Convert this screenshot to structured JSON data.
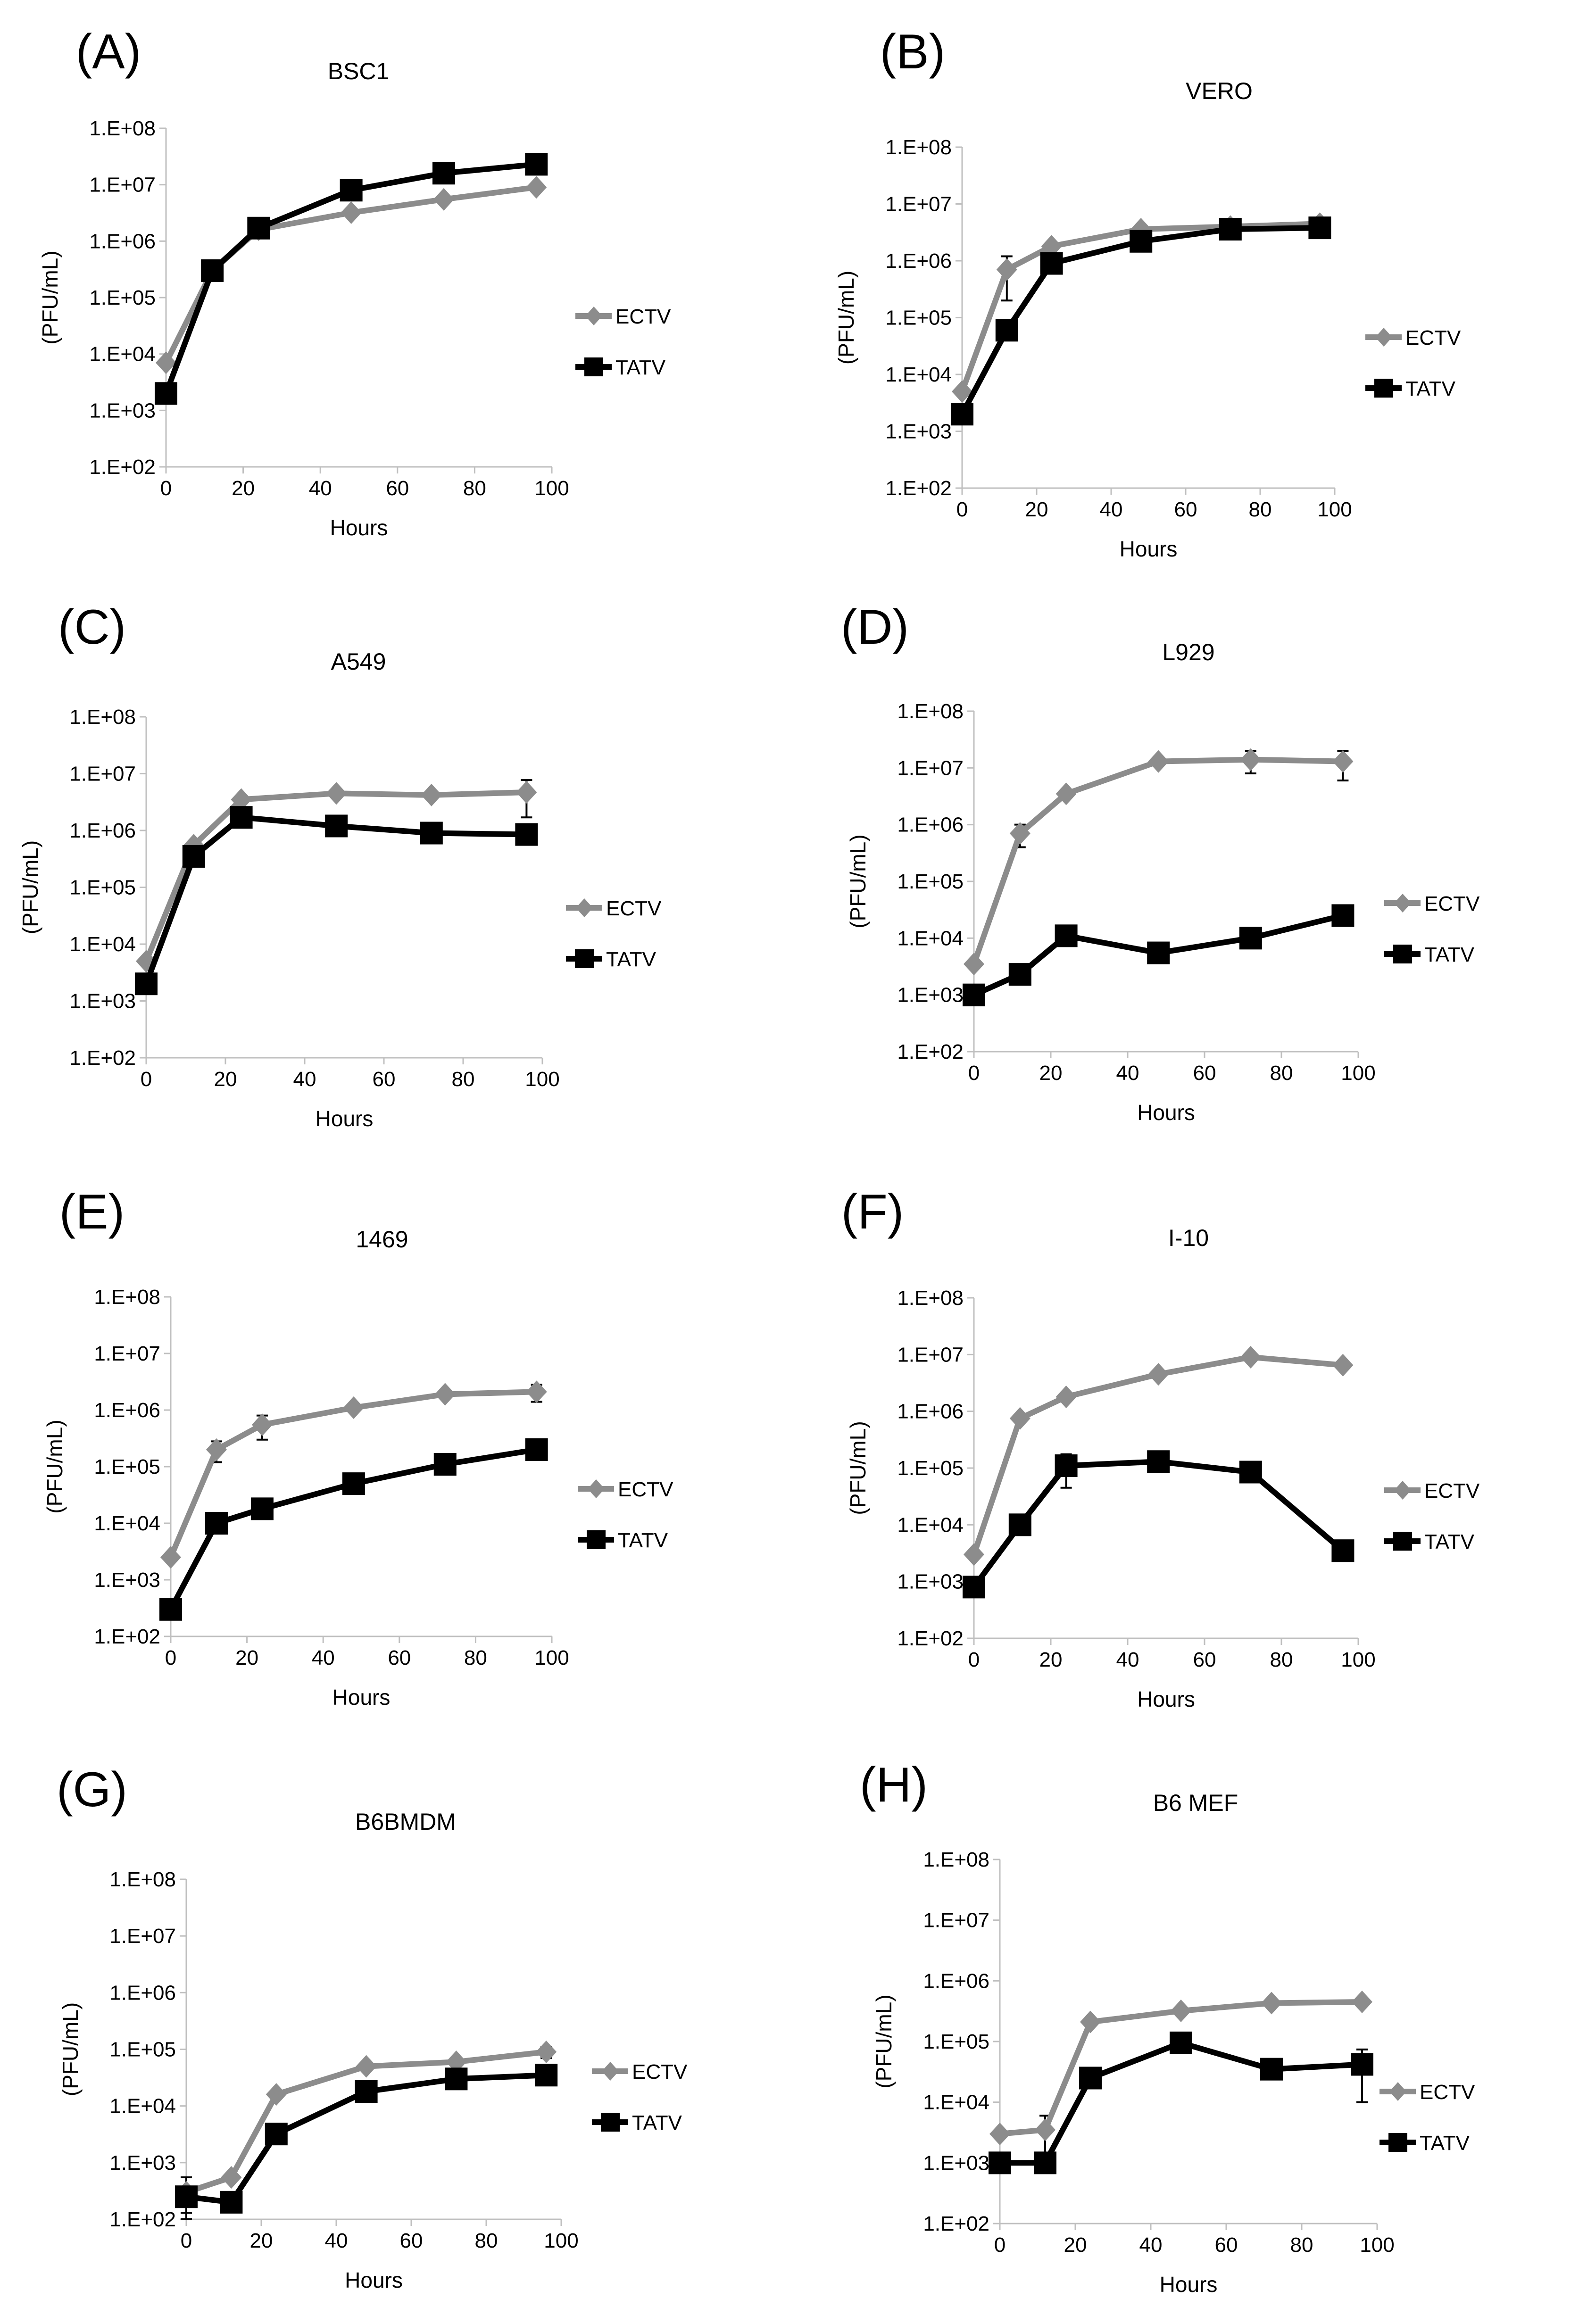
{
  "colors": {
    "ECTV": "#8c8c8c",
    "TATV": "#000000",
    "axis": "#bfbfbf"
  },
  "chart_data": [
    {
      "panel": "(A)",
      "type": "line",
      "title": "BSC1",
      "xlabel": "Hours",
      "ylabel": "(PFU/mL)",
      "xlim": [
        0,
        100
      ],
      "xticks": [
        0,
        20,
        40,
        60,
        80,
        100
      ],
      "ylim": [
        100,
        100000000
      ],
      "yscale": "log",
      "yticks": [
        "1.E+02",
        "1.E+03",
        "1.E+04",
        "1.E+05",
        "1.E+06",
        "1.E+07",
        "1.E+08"
      ],
      "x": [
        0,
        12,
        24,
        48,
        72,
        96
      ],
      "series": [
        {
          "name": "ECTV",
          "marker": "diamond",
          "values": [
            7000,
            300000,
            1600000,
            3200000,
            5500000,
            9000000
          ],
          "err": [
            0,
            0,
            0,
            0,
            0,
            0
          ]
        },
        {
          "name": "TATV",
          "marker": "square",
          "values": [
            2000,
            300000,
            1700000,
            8000000,
            16000000,
            23000000
          ],
          "err": [
            0,
            0,
            0,
            0,
            0,
            0
          ]
        }
      ],
      "legend": "right"
    },
    {
      "panel": "(B)",
      "type": "line",
      "title": "VERO",
      "xlabel": "Hours",
      "ylabel": "(PFU/mL)",
      "xlim": [
        0,
        100
      ],
      "xticks": [
        0,
        20,
        40,
        60,
        80,
        100
      ],
      "ylim": [
        100,
        100000000
      ],
      "yscale": "log",
      "yticks": [
        "1.E+02",
        "1.E+03",
        "1.E+04",
        "1.E+05",
        "1.E+06",
        "1.E+07",
        "1.E+08"
      ],
      "x": [
        0,
        12,
        24,
        48,
        72,
        96
      ],
      "series": [
        {
          "name": "ECTV",
          "marker": "diamond",
          "values": [
            5000,
            700000,
            1800000,
            3600000,
            4000000,
            4500000
          ],
          "err": [
            0,
            500000,
            0,
            0,
            0,
            0
          ]
        },
        {
          "name": "TATV",
          "marker": "square",
          "values": [
            2000,
            60000,
            900000,
            2200000,
            3600000,
            3800000
          ],
          "err": [
            0,
            0,
            0,
            0,
            0,
            0
          ]
        }
      ],
      "legend": "right"
    },
    {
      "panel": "(C)",
      "type": "line",
      "title": "A549",
      "xlabel": "Hours",
      "ylabel": "(PFU/mL)",
      "xlim": [
        0,
        100
      ],
      "xticks": [
        0,
        20,
        40,
        60,
        80,
        100
      ],
      "ylim": [
        100,
        100000000
      ],
      "yscale": "log",
      "yticks": [
        "1.E+02",
        "1.E+03",
        "1.E+04",
        "1.E+05",
        "1.E+06",
        "1.E+07",
        "1.E+08"
      ],
      "x": [
        0,
        12,
        24,
        48,
        72,
        96
      ],
      "series": [
        {
          "name": "ECTV",
          "marker": "diamond",
          "values": [
            5000,
            550000,
            3500000,
            4500000,
            4200000,
            4700000
          ],
          "err": [
            0,
            0,
            0,
            0,
            0,
            3000000
          ]
        },
        {
          "name": "TATV",
          "marker": "square",
          "values": [
            2000,
            350000,
            1700000,
            1200000,
            900000,
            850000
          ],
          "err": [
            0,
            0,
            0,
            0,
            0,
            0
          ]
        }
      ],
      "legend": "right"
    },
    {
      "panel": "(D)",
      "type": "line",
      "title": "L929",
      "xlabel": "Hours",
      "ylabel": "(PFU/mL)",
      "xlim": [
        0,
        100
      ],
      "xticks": [
        0,
        20,
        40,
        60,
        80,
        100
      ],
      "ylim": [
        100,
        100000000
      ],
      "yscale": "log",
      "yticks": [
        "1.E+02",
        "1.E+03",
        "1.E+04",
        "1.E+05",
        "1.E+06",
        "1.E+07",
        "1.E+08"
      ],
      "x": [
        0,
        12,
        24,
        48,
        72,
        96
      ],
      "series": [
        {
          "name": "ECTV",
          "marker": "diamond",
          "values": [
            3500,
            700000,
            3500000,
            13000000,
            14000000,
            13000000
          ],
          "err": [
            0,
            300000,
            0,
            0,
            6000000,
            7000000
          ]
        },
        {
          "name": "TATV",
          "marker": "square",
          "values": [
            1000,
            2300,
            11000,
            5500,
            10000,
            25000
          ],
          "err": [
            0,
            0,
            0,
            0,
            0,
            0
          ]
        }
      ],
      "legend": "right"
    },
    {
      "panel": "(E)",
      "type": "line",
      "title": "1469",
      "xlabel": "Hours",
      "ylabel": "(PFU/mL)",
      "xlim": [
        0,
        100
      ],
      "xticks": [
        0,
        20,
        40,
        60,
        80,
        100
      ],
      "ylim": [
        100,
        100000000
      ],
      "yscale": "log",
      "yticks": [
        "1.E+02",
        "1.E+03",
        "1.E+04",
        "1.E+05",
        "1.E+06",
        "1.E+07",
        "1.E+08"
      ],
      "x": [
        0,
        12,
        24,
        48,
        72,
        96
      ],
      "series": [
        {
          "name": "ECTV",
          "marker": "diamond",
          "values": [
            2500,
            200000,
            550000,
            1100000,
            1900000,
            2100000
          ],
          "err": [
            0,
            80000,
            250000,
            0,
            0,
            700000
          ]
        },
        {
          "name": "TATV",
          "marker": "square",
          "values": [
            300,
            10000,
            18000,
            50000,
            110000,
            200000
          ],
          "err": [
            0,
            0,
            0,
            0,
            0,
            0
          ]
        }
      ],
      "legend": "right"
    },
    {
      "panel": "(F)",
      "type": "line",
      "title": "I-10",
      "xlabel": "Hours",
      "ylabel": "(PFU/mL)",
      "xlim": [
        0,
        100
      ],
      "xticks": [
        0,
        20,
        40,
        60,
        80,
        100
      ],
      "ylim": [
        100,
        100000000
      ],
      "yscale": "log",
      "yticks": [
        "1.E+02",
        "1.E+03",
        "1.E+04",
        "1.E+05",
        "1.E+06",
        "1.E+07",
        "1.E+08"
      ],
      "x": [
        0,
        12,
        24,
        48,
        72,
        96
      ],
      "series": [
        {
          "name": "ECTV",
          "marker": "diamond",
          "values": [
            3000,
            750000,
            1800000,
            4500000,
            9000000,
            6500000
          ],
          "err": [
            0,
            0,
            0,
            0,
            0,
            0
          ]
        },
        {
          "name": "TATV",
          "marker": "square",
          "values": [
            800,
            10000,
            110000,
            130000,
            85000,
            3500
          ],
          "err": [
            0,
            0,
            65000,
            0,
            0,
            0
          ]
        }
      ],
      "legend": "right"
    },
    {
      "panel": "(G)",
      "type": "line",
      "title": "B6BMDM",
      "xlabel": "Hours",
      "ylabel": "(PFU/mL)",
      "xlim": [
        0,
        100
      ],
      "xticks": [
        0,
        20,
        40,
        60,
        80,
        100
      ],
      "ylim": [
        100,
        100000000
      ],
      "yscale": "log",
      "yticks": [
        "1.E+02",
        "1.E+03",
        "1.E+04",
        "1.E+05",
        "1.E+06",
        "1.E+07",
        "1.E+08"
      ],
      "x": [
        0,
        12,
        24,
        48,
        72,
        96
      ],
      "series": [
        {
          "name": "ECTV",
          "marker": "diamond",
          "values": [
            300,
            550,
            16000,
            50000,
            60000,
            90000
          ],
          "err": [
            250,
            0,
            0,
            0,
            0,
            20000
          ]
        },
        {
          "name": "TATV",
          "marker": "square",
          "values": [
            250,
            200,
            3200,
            18000,
            30000,
            35000
          ],
          "err": [
            120,
            0,
            0,
            0,
            0,
            0
          ]
        }
      ],
      "legend": "right"
    },
    {
      "panel": "(H)",
      "type": "line",
      "title": "B6 MEF",
      "xlabel": "Hours",
      "ylabel": "(PFU/mL)",
      "xlim": [
        0,
        100
      ],
      "xticks": [
        0,
        20,
        40,
        60,
        80,
        100
      ],
      "ylim": [
        100,
        100000000
      ],
      "yscale": "log",
      "yticks": [
        "1.E+02",
        "1.E+03",
        "1.E+04",
        "1.E+05",
        "1.E+06",
        "1.E+07",
        "1.E+08"
      ],
      "x": [
        0,
        12,
        24,
        48,
        72,
        96
      ],
      "series": [
        {
          "name": "ECTV",
          "marker": "diamond",
          "values": [
            3000,
            3500,
            210000,
            320000,
            430000,
            450000
          ],
          "err": [
            0,
            2500,
            0,
            0,
            0,
            0
          ]
        },
        {
          "name": "TATV",
          "marker": "square",
          "values": [
            1000,
            1000,
            25000,
            95000,
            35000,
            42000
          ],
          "err": [
            0,
            0,
            0,
            0,
            0,
            32000
          ]
        }
      ],
      "legend": "right"
    }
  ]
}
